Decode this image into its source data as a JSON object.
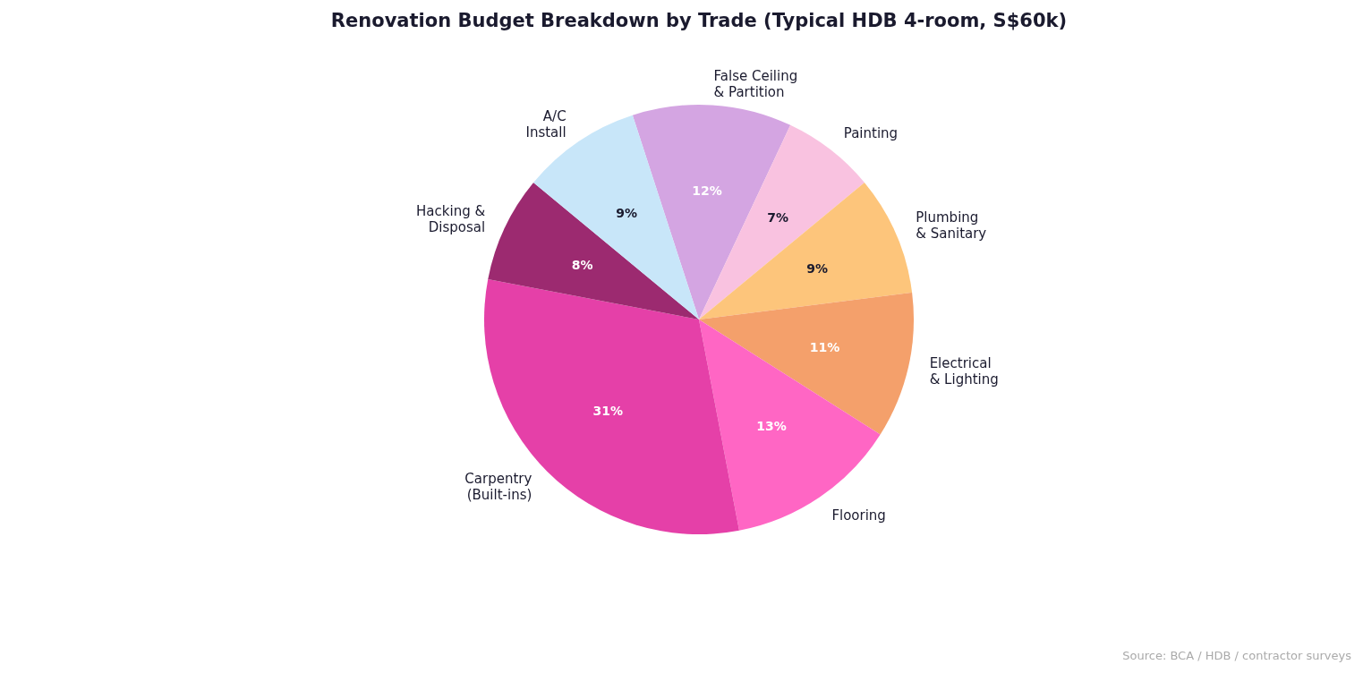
{
  "chart_data": {
    "type": "pie",
    "title": "Renovation Budget Breakdown by Trade (Typical HDB 4-room, S$60k)",
    "categories": [
      "False Ceiling\n& Partition",
      "Painting",
      "Plumbing\n& Sanitary",
      "Electrical\n& Lighting",
      "Flooring",
      "Carpentry\n(Built-ins)",
      "Hacking &\nDisposal",
      "A/C\nInstall"
    ],
    "values": [
      12,
      7,
      9,
      11,
      13,
      31,
      8,
      9
    ],
    "colors": [
      "#d4a5e2",
      "#f9c2e0",
      "#fdc57b",
      "#f4a06b",
      "#ff66c4",
      "#e540a8",
      "#9c2a70",
      "#c8e6f9"
    ],
    "value_labels": [
      "12%",
      "7%",
      "9%",
      "11%",
      "13%",
      "31%",
      "8%",
      "9%"
    ],
    "annotations": [
      "Source: BCA / HDB / contractor surveys"
    ]
  }
}
